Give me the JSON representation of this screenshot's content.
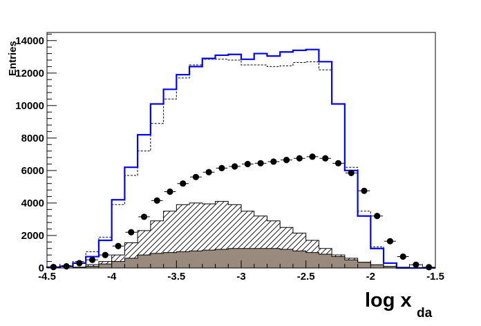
{
  "chart_data": {
    "type": "histogram",
    "xlabel": "log x",
    "xlabel_sub": "da",
    "ylabel": "Entries",
    "xlim": [
      -4.5,
      -1.5
    ],
    "ylim": [
      0,
      14500
    ],
    "grid": false,
    "bin_edges": [
      -4.5,
      -4.4,
      -4.3,
      -4.2,
      -4.1,
      -4.0,
      -3.9,
      -3.8,
      -3.7,
      -3.6,
      -3.5,
      -3.4,
      -3.3,
      -3.2,
      -3.1,
      -3.0,
      -2.9,
      -2.8,
      -2.7,
      -2.6,
      -2.5,
      -2.4,
      -2.3,
      -2.2,
      -2.1,
      -2.0,
      -1.9,
      -1.8,
      -1.7,
      -1.6,
      -1.5
    ],
    "x_ticks": [
      -4.5,
      -4,
      -3.5,
      -3,
      -2.5,
      -2,
      -1.5
    ],
    "x_tick_labels": [
      "-4.5",
      "-4",
      "-3.5",
      "-3",
      "-2.5",
      "-2",
      "-1.5"
    ],
    "y_ticks": [
      0,
      2000,
      4000,
      6000,
      8000,
      10000,
      12000,
      14000
    ],
    "y_tick_labels": [
      "0",
      "2000",
      "4000",
      "6000",
      "8000",
      "10000",
      "12000",
      "14000"
    ],
    "series": [
      {
        "style": "solid-blue-step",
        "color": "#0000ff",
        "values": [
          50,
          100,
          300,
          700,
          1700,
          4200,
          6200,
          8200,
          10100,
          11000,
          11900,
          12400,
          12900,
          13100,
          13150,
          12850,
          13200,
          13050,
          13300,
          13400,
          13450,
          12700,
          10100,
          6000,
          3200,
          1200,
          300,
          0,
          0,
          0
        ]
      },
      {
        "style": "dashed-black-step",
        "color": "#000000",
        "values": [
          50,
          150,
          400,
          1000,
          1900,
          3900,
          5700,
          7200,
          8900,
          10400,
          11700,
          12500,
          12850,
          12850,
          12800,
          12500,
          12500,
          12400,
          12450,
          12650,
          12700,
          12200,
          10100,
          6200,
          3500,
          1300,
          300,
          0,
          0,
          0
        ]
      },
      {
        "style": "black-points-with-xerrors",
        "color": "#000000",
        "values": [
          60,
          100,
          300,
          500,
          800,
          1350,
          2200,
          3150,
          4150,
          4700,
          5200,
          5600,
          5900,
          6150,
          6250,
          6400,
          6450,
          6550,
          6650,
          6750,
          6850,
          6750,
          6450,
          5850,
          4750,
          3200,
          1650,
          700,
          200,
          50
        ]
      },
      {
        "style": "hatched-step",
        "color": "#000000",
        "values": [
          0,
          0,
          50,
          200,
          400,
          800,
          1550,
          2300,
          2900,
          3500,
          3900,
          4000,
          3950,
          4100,
          3900,
          3500,
          3200,
          2900,
          2500,
          2150,
          1700,
          1200,
          800,
          600,
          350,
          150,
          50,
          0,
          0,
          0
        ]
      },
      {
        "style": "filled-gray-step",
        "color": "#988a7c",
        "values": [
          0,
          0,
          50,
          100,
          250,
          400,
          600,
          800,
          900,
          950,
          1000,
          1050,
          1100,
          1150,
          1200,
          1200,
          1200,
          1200,
          1150,
          1050,
          950,
          850,
          700,
          500,
          350,
          200,
          100,
          50,
          0,
          0
        ]
      }
    ]
  }
}
